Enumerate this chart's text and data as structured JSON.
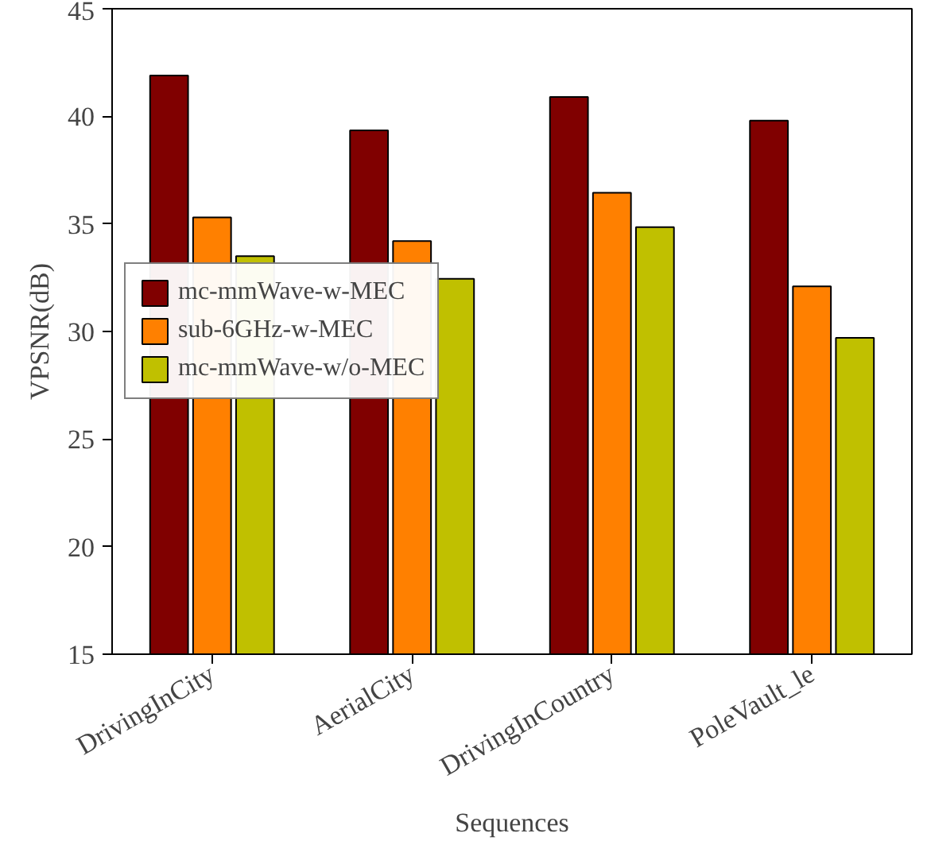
{
  "chart_data": {
    "type": "bar",
    "xlabel": "Sequences",
    "ylabel": "VPSNR(dB)",
    "categories": [
      "DrivingInCity",
      "AerialCity",
      "DrivingInCountry",
      "PoleVault_le"
    ],
    "series": [
      {
        "name": "mc-mmWave-w-MEC",
        "color": "#800000",
        "values": [
          41.9,
          39.35,
          40.9,
          39.8
        ]
      },
      {
        "name": "sub-6GHz-w-MEC",
        "color": "#ff8000",
        "values": [
          35.3,
          34.2,
          36.45,
          32.1
        ]
      },
      {
        "name": "mc-mmWave-w/o-MEC",
        "color": "#c0c000",
        "values": [
          33.5,
          32.45,
          34.85,
          29.7
        ]
      }
    ],
    "ylim": [
      15,
      45
    ],
    "yticks": [
      15,
      20,
      25,
      30,
      35,
      40,
      45
    ],
    "grid": false,
    "legend": "center left"
  }
}
